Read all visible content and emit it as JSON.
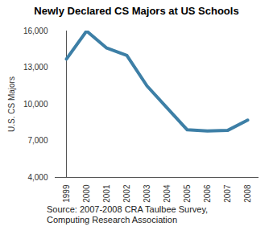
{
  "chart_data": {
    "type": "line",
    "title": "Newly Declared CS Majors at US Schools",
    "y_label": "U.S. CS Majors",
    "caption": [
      "Source: 2007-2008 CRA Taulbee Survey,",
      "Computing Research Association"
    ],
    "categories": [
      "1999",
      "2000",
      "2001",
      "2002",
      "2003",
      "2004",
      "2005",
      "2006",
      "2007",
      "2008"
    ],
    "values": [
      13700,
      16000,
      14600,
      14000,
      11500,
      9700,
      7900,
      7800,
      7850,
      8700
    ],
    "color": "#3d7fa6",
    "ylim": [
      4000,
      16000
    ],
    "yticks": [
      {
        "value": 4000,
        "label": "4,000"
      },
      {
        "value": 7000,
        "label": "7,000"
      },
      {
        "value": 10000,
        "label": "10,000"
      },
      {
        "value": 13000,
        "label": "13,000"
      },
      {
        "value": 16000,
        "label": "16,000"
      }
    ],
    "grid": false
  }
}
